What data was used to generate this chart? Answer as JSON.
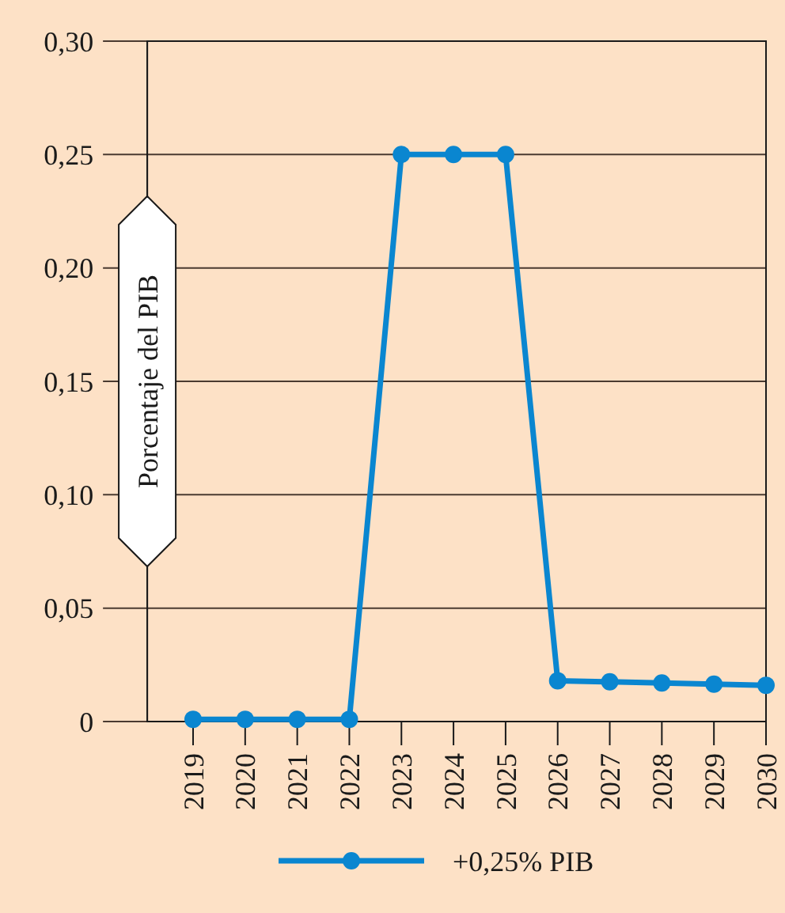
{
  "chart_data": {
    "type": "line",
    "ylabel": "Porcentaje del PIB",
    "categories": [
      "2019",
      "2020",
      "2021",
      "2022",
      "2023",
      "2024",
      "2025",
      "2026",
      "2027",
      "2028",
      "2029",
      "2030"
    ],
    "series": [
      {
        "name": "+0,25% PIB",
        "color": "#0a86d0",
        "values": [
          0.001,
          0.001,
          0.001,
          0.001,
          0.25,
          0.25,
          0.25,
          0.018,
          0.0175,
          0.017,
          0.0165,
          0.016
        ]
      }
    ],
    "ylim": [
      0,
      0.3
    ],
    "yticks": [
      {
        "value": 0,
        "label": "0"
      },
      {
        "value": 0.05,
        "label": "0,05"
      },
      {
        "value": 0.1,
        "label": "0,10"
      },
      {
        "value": 0.15,
        "label": "0,15"
      },
      {
        "value": 0.2,
        "label": "0,20"
      },
      {
        "value": 0.25,
        "label": "0,25"
      },
      {
        "value": 0.3,
        "label": "0,30"
      }
    ],
    "grid": "y",
    "legend": "bottom",
    "marker": "circle",
    "line_style": "solid"
  }
}
